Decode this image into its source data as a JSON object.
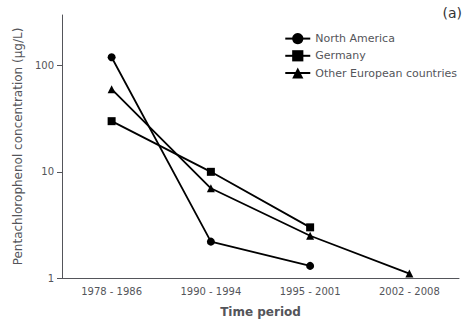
{
  "chart_data": {
    "type": "line",
    "x_label": "Time period",
    "y_label": "Pentachlorophenol concentration (μg/L)",
    "annotation": "(a)",
    "categories": [
      "1978 - 1986",
      "1990 - 1994",
      "1995 - 2001",
      "2002 - 2008"
    ],
    "series": [
      {
        "name": "North America",
        "color": "#000000",
        "marker": "circle",
        "values": [
          120,
          2.2,
          1.3,
          null
        ]
      },
      {
        "name": "Germany",
        "color": "#000000",
        "marker": "square",
        "values": [
          30,
          10,
          3.0,
          null
        ]
      },
      {
        "name": "Other European countries",
        "color": "#000000",
        "marker": "triangle",
        "values": [
          60,
          7.0,
          2.5,
          1.1
        ]
      }
    ],
    "ylim": [
      1,
      300
    ],
    "yticks": [
      1,
      10,
      100
    ],
    "log": "y",
    "legend": "upper right",
    "grid": false
  }
}
